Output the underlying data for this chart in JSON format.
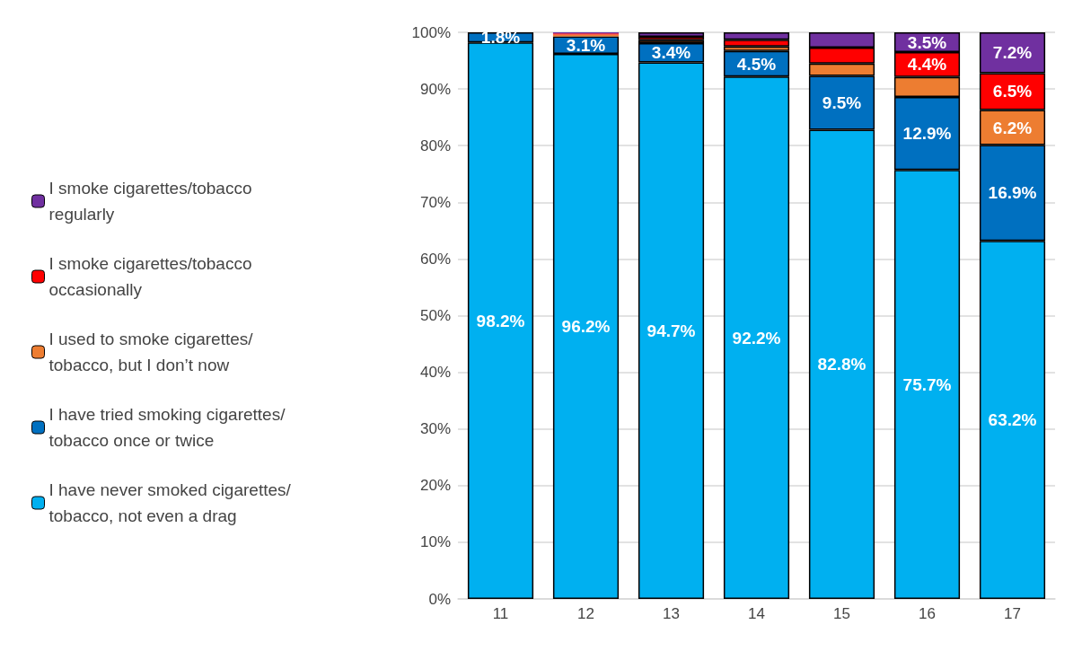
{
  "chart_data": {
    "type": "bar",
    "stacked": true,
    "categories": [
      "11",
      "12",
      "13",
      "14",
      "15",
      "16",
      "17"
    ],
    "series": [
      {
        "name": "I have never smoked cigarettes/tobacco, not even a drag",
        "color": "#00b0f0",
        "values": [
          98.2,
          96.2,
          94.7,
          92.2,
          82.8,
          75.7,
          63.2
        ],
        "value_labels": [
          "98.2%",
          "96.2%",
          "94.7%",
          "92.2%",
          "82.8%",
          "75.7%",
          "63.2%"
        ]
      },
      {
        "name": "I have tried smoking cigarettes/tobacco once or twice",
        "color": "#0070c0",
        "values": [
          1.8,
          3.1,
          3.4,
          4.5,
          9.5,
          12.9,
          16.9
        ],
        "value_labels": [
          "1.8%",
          "3.1%",
          "3.4%",
          "4.5%",
          "9.5%",
          "12.9%",
          "16.9%"
        ]
      },
      {
        "name": "I used to smoke cigarettes/tobacco, but I don’t now",
        "color": "#ed7d31",
        "values": [
          null,
          0.3,
          0.5,
          0.8,
          2.2,
          3.5,
          6.2
        ],
        "value_labels": [
          null,
          null,
          null,
          null,
          null,
          null,
          "6.2%"
        ]
      },
      {
        "name": "I smoke cigarettes/tobacco occasionally",
        "color": "#ff0000",
        "values": [
          null,
          0.2,
          0.6,
          1.2,
          2.8,
          4.4,
          6.5
        ],
        "value_labels": [
          null,
          null,
          null,
          null,
          null,
          "4.4%",
          "6.5%"
        ]
      },
      {
        "name": "I smoke cigarettes/tobacco regularly",
        "color": "#7030a0",
        "values": [
          null,
          0.2,
          0.8,
          1.3,
          2.7,
          3.5,
          7.2
        ],
        "value_labels": [
          null,
          null,
          null,
          null,
          null,
          "3.5%",
          "7.2%"
        ]
      }
    ],
    "ylim": [
      0,
      100
    ],
    "yticks": [
      {
        "value": 0,
        "label": "0%"
      },
      {
        "value": 10,
        "label": "10%"
      },
      {
        "value": 20,
        "label": "20%"
      },
      {
        "value": 30,
        "label": "30%"
      },
      {
        "value": 40,
        "label": "40%"
      },
      {
        "value": 50,
        "label": "50%"
      },
      {
        "value": 60,
        "label": "60%"
      },
      {
        "value": 70,
        "label": "70%"
      },
      {
        "value": 80,
        "label": "80%"
      },
      {
        "value": 90,
        "label": "90%"
      },
      {
        "value": 100,
        "label": "100%"
      }
    ],
    "grid": "y",
    "legend": "left"
  }
}
